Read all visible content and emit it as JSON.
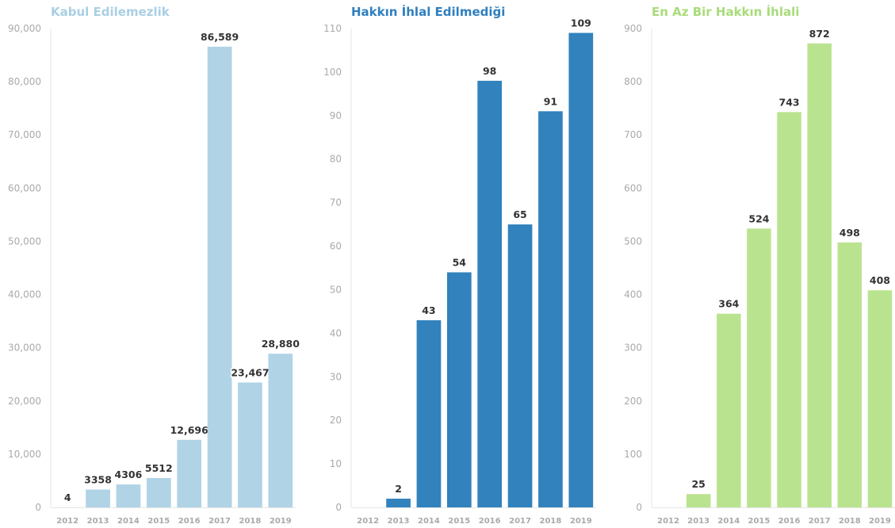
{
  "chart_data": [
    {
      "type": "bar",
      "title": "Kabul Edilemezlik",
      "color": "#b0d3e6",
      "categories": [
        "2012",
        "2013",
        "2014",
        "2015",
        "2016",
        "2017",
        "2018",
        "2019"
      ],
      "values": [
        4,
        3358,
        4306,
        5512,
        12696,
        86589,
        23467,
        28880
      ],
      "value_labels": [
        "4",
        "3358",
        "4306",
        "5512",
        "12,696",
        "86,589",
        "23,467",
        "28,880"
      ],
      "ylim": [
        0,
        90000
      ],
      "yticks": [
        0,
        10000,
        20000,
        30000,
        40000,
        50000,
        60000,
        70000,
        80000,
        90000
      ],
      "ytick_labels": [
        "0",
        "10,000",
        "20,000",
        "30,000",
        "40,000",
        "50,000",
        "60,000",
        "70,000",
        "80,000",
        "90,000"
      ],
      "grid": false
    },
    {
      "type": "bar",
      "title": "Hakkın İhlal Edilmediği",
      "color": "#3182bd",
      "categories": [
        "2012",
        "2013",
        "2014",
        "2015",
        "2016",
        "2017",
        "2018",
        "2019"
      ],
      "values": [
        0,
        2,
        43,
        54,
        98,
        65,
        91,
        109
      ],
      "value_labels": [
        "",
        "2",
        "43",
        "54",
        "98",
        "65",
        "91",
        "109"
      ],
      "ylim": [
        0,
        110
      ],
      "yticks": [
        0,
        10,
        20,
        30,
        40,
        50,
        60,
        70,
        80,
        90,
        100,
        110
      ],
      "ytick_labels": [
        "0",
        "10",
        "20",
        "30",
        "40",
        "50",
        "60",
        "70",
        "80",
        "90",
        "100",
        "110"
      ],
      "grid": false
    },
    {
      "type": "bar",
      "title": "En Az Bir Hakkın İhlali",
      "color": "#bae38f",
      "categories": [
        "2012",
        "2013",
        "2014",
        "2015",
        "2016",
        "2017",
        "2018",
        "2019"
      ],
      "values": [
        0,
        25,
        364,
        524,
        743,
        872,
        498,
        408
      ],
      "value_labels": [
        "",
        "25",
        "364",
        "524",
        "743",
        "872",
        "498",
        "408"
      ],
      "ylim": [
        0,
        900
      ],
      "yticks": [
        0,
        100,
        200,
        300,
        400,
        500,
        600,
        700,
        800,
        900
      ],
      "ytick_labels": [
        "0",
        "100",
        "200",
        "300",
        "400",
        "500",
        "600",
        "700",
        "800",
        "900"
      ],
      "grid": false
    }
  ]
}
